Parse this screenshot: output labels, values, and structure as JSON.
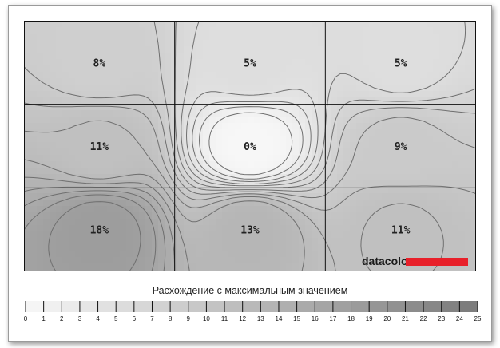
{
  "chart_data": {
    "type": "heatmap",
    "rows": 3,
    "cols": 3,
    "values": [
      [
        8,
        5,
        5
      ],
      [
        11,
        0,
        9
      ],
      [
        18,
        13,
        11
      ]
    ],
    "unit": "%",
    "colorbar": {
      "title": "Расхождение с максимальным значением",
      "min": 0,
      "max": 25,
      "ticks": [
        0,
        1,
        2,
        3,
        4,
        5,
        6,
        7,
        8,
        9,
        10,
        11,
        12,
        13,
        14,
        15,
        16,
        17,
        18,
        19,
        20,
        21,
        22,
        23,
        24,
        25
      ],
      "colors": {
        "low": "#f7f7f7",
        "high": "#7a7a7a"
      }
    },
    "contour_lines": true,
    "grid": true
  },
  "brand": {
    "name": "datacolor",
    "accent": "#e8202a"
  },
  "legend_title": "Расхождение с максимальным значением"
}
